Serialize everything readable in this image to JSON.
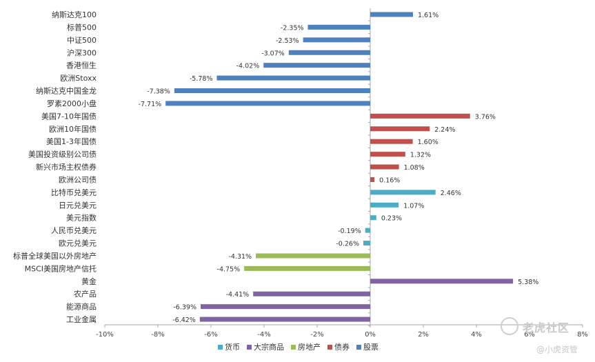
{
  "chart_data": {
    "type": "bar",
    "orientation": "horizontal",
    "categories": [
      "纳斯达克100",
      "标普500",
      "中证500",
      "沪深300",
      "香港恒生",
      "欧洲Stoxx",
      "纳斯达克中国金龙",
      "罗素2000小盘",
      "美国7-10年国债",
      "欧洲10年国债",
      "美国1-3年国债",
      "美国投资级别公司债",
      "新兴市场主权债券",
      "欧洲公司债",
      "比特币兑美元",
      "日元兑美元",
      "美元指数",
      "人民币兑美元",
      "欧元兑美元",
      "标普全球美国以外房地产",
      "MSCI美国房地产信托",
      "黄金",
      "农产品",
      "能源商品",
      "工业金属"
    ],
    "values": [
      1.61,
      -2.35,
      -2.53,
      -3.07,
      -4.02,
      -5.78,
      -7.38,
      -7.71,
      3.76,
      2.24,
      1.6,
      1.32,
      1.08,
      0.16,
      2.46,
      1.07,
      0.23,
      -0.19,
      -0.26,
      -4.31,
      -4.75,
      5.38,
      -4.41,
      -6.39,
      -6.42
    ],
    "value_labels": [
      "1.61%",
      "-2.35%",
      "-2.53%",
      "-3.07%",
      "-4.02%",
      "-5.78%",
      "-7.38%",
      "-7.71%",
      "3.76%",
      "2.24%",
      "1.60%",
      "1.32%",
      "1.08%",
      "0.16%",
      "2.46%",
      "1.07%",
      "0.23%",
      "-0.19%",
      "-0.26%",
      "-4.31%",
      "-4.75%",
      "5.38%",
      "-4.41%",
      "-6.39%",
      "-6.42%"
    ],
    "groups": [
      "股票",
      "股票",
      "股票",
      "股票",
      "股票",
      "股票",
      "股票",
      "股票",
      "债券",
      "债券",
      "债券",
      "债券",
      "债券",
      "债券",
      "货币",
      "货币",
      "货币",
      "货币",
      "货币",
      "房地产",
      "房地产",
      "大宗商品",
      "大宗商品",
      "大宗商品",
      "大宗商品"
    ],
    "xlim": [
      -10,
      8
    ],
    "xticks": [
      -10,
      -8,
      -6,
      -4,
      -2,
      0,
      2,
      4,
      6,
      8
    ],
    "xtick_labels": [
      "-10%",
      "-8%",
      "-6%",
      "-4%",
      "-2%",
      "0%",
      "2%",
      "4%",
      "6%",
      "8%"
    ],
    "legend": [
      {
        "name": "货币",
        "color": "#4bacc6"
      },
      {
        "name": "大宗商品",
        "color": "#8064a2"
      },
      {
        "name": "房地产",
        "color": "#9bbb59"
      },
      {
        "name": "债券",
        "color": "#c0504d"
      },
      {
        "name": "股票",
        "color": "#4f81bd"
      }
    ],
    "legend_position": "bottom",
    "grid": false
  },
  "watermark": {
    "brand": "老虎社区",
    "account": "@小虎资管"
  }
}
